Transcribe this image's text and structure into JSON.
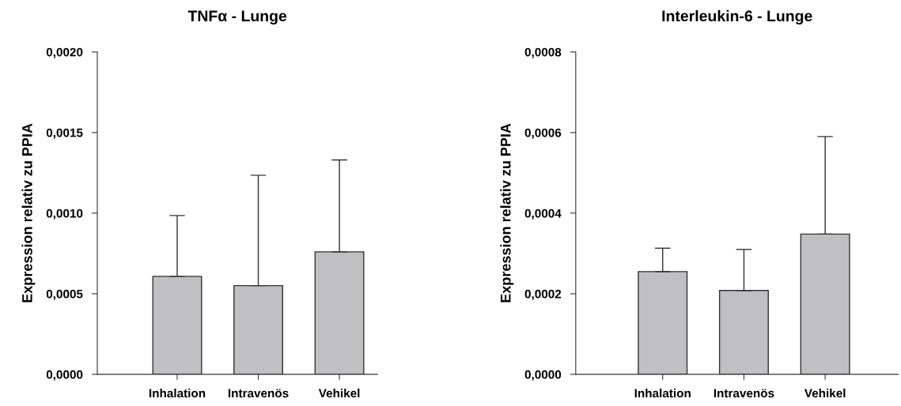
{
  "chart_data": [
    {
      "type": "bar",
      "title": "TNFα - Lunge",
      "ylabel": "Expression relativ zu PPIA",
      "categories": [
        "Inhalation",
        "Intravenös",
        "Vehikel"
      ],
      "values": [
        0.000608,
        0.00055,
        0.00076
      ],
      "errors": [
        [
          0.000608,
          0.000985
        ],
        [
          0.00055,
          0.001235
        ],
        [
          0.00076,
          0.00133
        ]
      ],
      "color": "#c0c0c2",
      "ylim": [
        0,
        0.002
      ],
      "yticks": [
        {
          "value": 0,
          "label": "0,0000"
        },
        {
          "value": 0.0005,
          "label": "0,0005"
        },
        {
          "value": 0.001,
          "label": "0,0010"
        },
        {
          "value": 0.0015,
          "label": "0,0015"
        },
        {
          "value": 0.002,
          "label": "0,0020"
        }
      ],
      "grid": false
    },
    {
      "type": "bar",
      "title": "Interleukin-6 - Lunge",
      "ylabel": "Expression relativ zu PPIA",
      "categories": [
        "Inhalation",
        "Intravenös",
        "Vehikel"
      ],
      "values": [
        0.000255,
        0.000208,
        0.000348
      ],
      "errors": [
        [
          0.000255,
          0.000313
        ],
        [
          0.000208,
          0.00031
        ],
        [
          0.000348,
          0.00059
        ]
      ],
      "color": "#c0c0c2",
      "ylim": [
        0,
        0.0008
      ],
      "yticks": [
        {
          "value": 0,
          "label": "0,0000"
        },
        {
          "value": 0.0002,
          "label": "0,0002"
        },
        {
          "value": 0.0004,
          "label": "0,0004"
        },
        {
          "value": 0.0006,
          "label": "0,0006"
        },
        {
          "value": 0.0008,
          "label": "0,0008"
        }
      ],
      "grid": false
    }
  ]
}
